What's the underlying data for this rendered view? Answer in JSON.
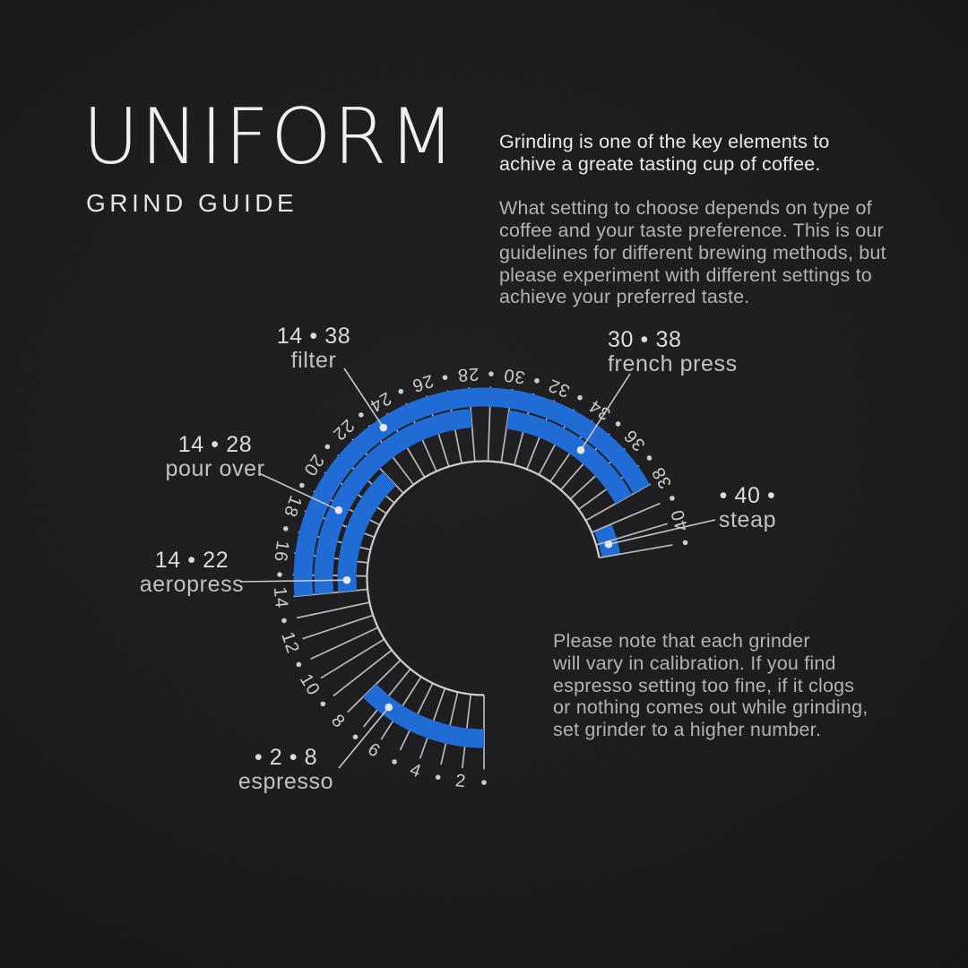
{
  "brand": {
    "title": "UNIFORM",
    "subtitle": "GRIND GUIDE"
  },
  "intro": {
    "lead": "Grinding is one of the key elements to\nachive a greate tasting cup of coffee.",
    "body": "What setting to choose depends on type of\ncoffee and your taste preference. This is our\nguidelines for different brewing methods, but\nplease experiment with different settings to\nachieve your preferred taste."
  },
  "note": "Please note that each grinder\nwill vary in calibration. If you find\nespresso setting too fine, if it clogs\nor nothing comes out while grinding,\nset grinder to a higher number.",
  "colors": {
    "accent": "#1d6ad6",
    "background": "#1a1a1c",
    "tick": "#b9b9b9",
    "inner_ring": "#cfcfcf",
    "scale_number": "#cdcdcd",
    "leader_line": "#c9c9c9",
    "leader_dot": "#e8e8e8"
  },
  "chart_data": {
    "type": "radial-gauge",
    "title": "UNIFORM GRIND GUIDE",
    "scale": {
      "min": 1,
      "max": 41,
      "tick_step": 1,
      "number_labels": [
        2,
        4,
        6,
        8,
        10,
        12,
        14,
        16,
        18,
        20,
        22,
        24,
        26,
        28,
        30,
        32,
        34,
        36,
        38,
        40
      ],
      "dot_marks_at_odd_positions": true
    },
    "methods": [
      {
        "name": "filter",
        "label": "14 • 38",
        "range": [
          14,
          38
        ],
        "ring": 1
      },
      {
        "name": "french press",
        "label": "30 • 38",
        "range": [
          30,
          38
        ],
        "ring": 2
      },
      {
        "name": "pour over",
        "label": "14 • 28",
        "range": [
          14,
          28
        ],
        "ring": 2
      },
      {
        "name": "aeropress",
        "label": "14 • 22",
        "range": [
          14,
          22
        ],
        "ring": 3
      },
      {
        "name": "steap",
        "label": "• 40 •",
        "range": [
          39,
          41
        ],
        "ring": 4
      },
      {
        "name": "espresso",
        "label": "• 2 • 8",
        "range": [
          1,
          8
        ],
        "ring": 2
      }
    ]
  }
}
